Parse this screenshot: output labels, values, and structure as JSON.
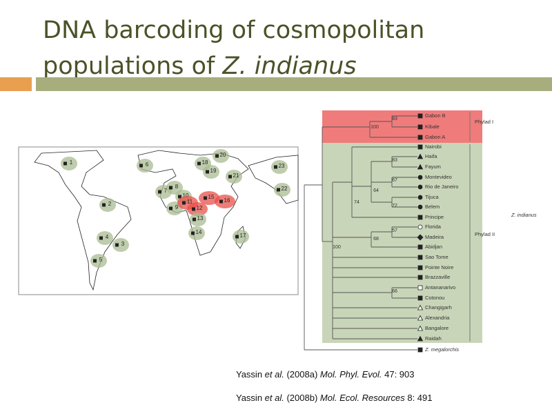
{
  "title": {
    "line1": "DNA barcoding of cosmopolitan",
    "line2": "populations of ",
    "line2_italic": "Z. indianus"
  },
  "map": {
    "sites": [
      "1",
      "2",
      "3",
      "4",
      "5",
      "6",
      "7",
      "8",
      "9",
      "10",
      "11",
      "12",
      "13",
      "14",
      "15",
      "16",
      "17",
      "18",
      "19",
      "20",
      "21",
      "22",
      "23"
    ]
  },
  "tree": {
    "taxa": [
      "Gabon B",
      "Kibale",
      "Gabon A",
      "Nairobi",
      "Haifa",
      "Fayum",
      "Montevideo",
      "Rio de Janeiro",
      "Tijuca",
      "Belem",
      "Principe",
      "Florida",
      "Madeira",
      "Abidjan",
      "Sao Tome",
      "Pointe Noire",
      "Brazzaville",
      "Antananarivo",
      "Cotonou",
      "Changigarh",
      "Alexandria",
      "Bangalore",
      "Raidah"
    ],
    "outgroup": "Z. megalorchis",
    "bootstrap": [
      "83",
      "100",
      "83",
      "67",
      "64",
      "74",
      "72",
      "57",
      "68",
      "100",
      "66"
    ],
    "phylad1": "Phylad I",
    "phylad2": "Phylad II",
    "species": "Z. indianus"
  },
  "references": [
    {
      "author": "Yassin ",
      "etal": "et al.",
      "year": " (2008a) ",
      "journal": "Mol. Phyl. Evol.",
      "volume": " 47: 903"
    },
    {
      "author": "Yassin ",
      "etal": "et al.",
      "year": " (2008b) ",
      "journal": "Mol. Ecol. Resources",
      "volume": " 8: 491"
    }
  ]
}
